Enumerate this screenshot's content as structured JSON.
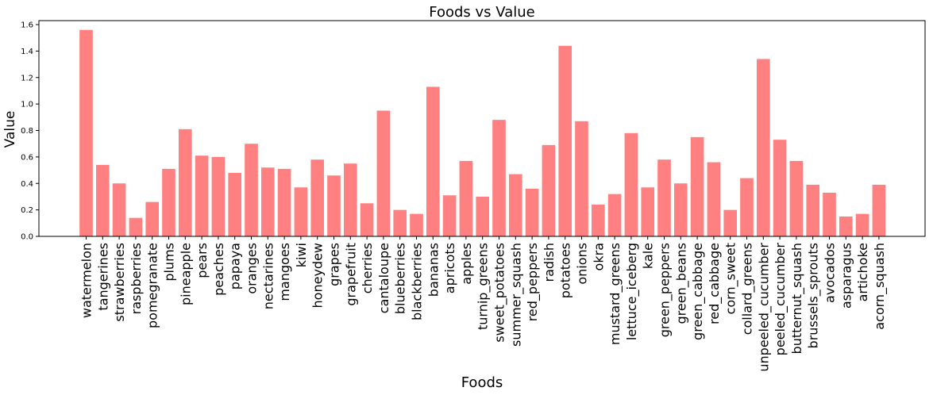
{
  "chart_data": {
    "type": "bar",
    "title": "Foods vs Value",
    "xlabel": "Foods",
    "ylabel": "Value",
    "ylim": [
      0,
      1.63
    ],
    "yticks": [
      0.0,
      0.2,
      0.4,
      0.6,
      0.8,
      1.0,
      1.2,
      1.4,
      1.6
    ],
    "ytick_labels": [
      "0.0",
      "0.2",
      "0.4",
      "0.6",
      "0.8",
      "1.0",
      "1.2",
      "1.4",
      "1.6"
    ],
    "bar_color": "#ff8080",
    "grid": false,
    "categories": [
      "watermelon",
      "tangerines",
      "strawberries",
      "raspberries",
      "pomegranate",
      "plums",
      "pineapple",
      "pears",
      "peaches",
      "papaya",
      "oranges",
      "nectarines",
      "mangoes",
      "kiwi",
      "honeydew",
      "grapes",
      "grapefruit",
      "cherries",
      "cantaloupe",
      "blueberries",
      "blackberries",
      "bananas",
      "apricots",
      "apples",
      "turnip_greens",
      "sweet_potatoes",
      "summer_squash",
      "red_peppers",
      "radish",
      "potatoes",
      "onions",
      "okra",
      "mustard_greens",
      "lettuce_iceberg",
      "kale",
      "green_peppers",
      "green_beans",
      "green_cabbage",
      "red_cabbage",
      "corn_sweet",
      "collard_greens",
      "unpeeled_cucumber",
      "peeled_cucumber",
      "butternut_squash",
      "brussels_sprouts",
      "avocados",
      "asparagus",
      "artichoke",
      "acorn_squash"
    ],
    "values": [
      1.56,
      0.54,
      0.4,
      0.14,
      0.26,
      0.51,
      0.81,
      0.61,
      0.6,
      0.48,
      0.7,
      0.52,
      0.51,
      0.37,
      0.58,
      0.46,
      0.55,
      0.25,
      0.95,
      0.2,
      0.17,
      1.13,
      0.31,
      0.57,
      0.3,
      0.88,
      0.47,
      0.36,
      0.69,
      1.44,
      0.87,
      0.24,
      0.32,
      0.78,
      0.37,
      0.58,
      0.4,
      0.75,
      0.56,
      0.2,
      0.44,
      1.34,
      0.73,
      0.57,
      0.39,
      0.33,
      0.15,
      0.17,
      0.39
    ]
  }
}
